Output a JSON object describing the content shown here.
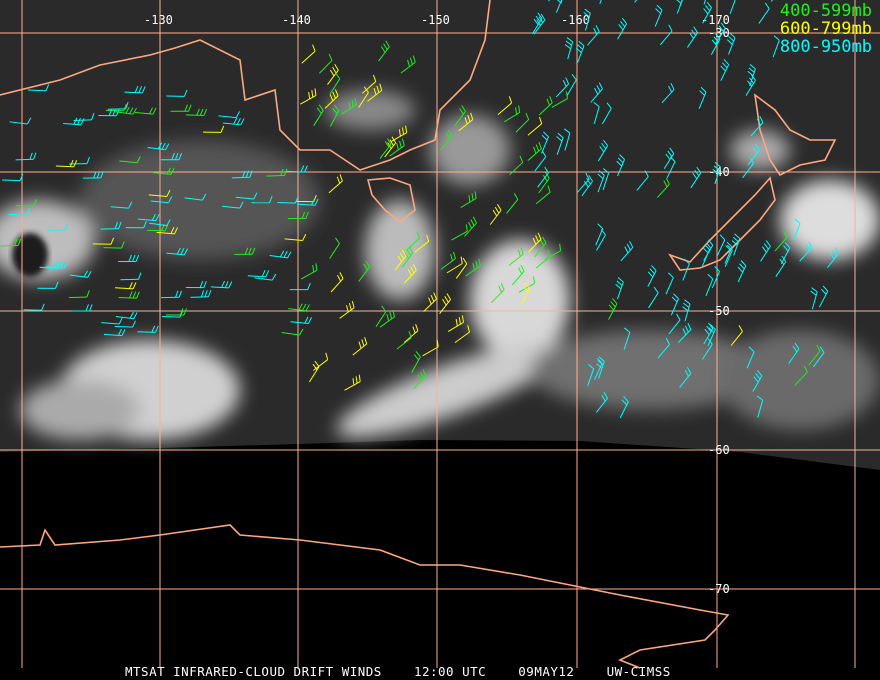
{
  "map": {
    "longitude_labels": [
      "-130",
      "-140",
      "-150",
      "-160",
      "-170"
    ],
    "latitude_labels": [
      "-30",
      "-40",
      "-50",
      "-60",
      "-70"
    ],
    "grid_color": "#ffb090",
    "coast_color": "#ffa880"
  },
  "legend": [
    {
      "label": "400-599mb",
      "color": "#22ee22"
    },
    {
      "label": "600-799mb",
      "color": "#ffff00"
    },
    {
      "label": "800-950mb",
      "color": "#00ffff"
    }
  ],
  "caption": {
    "product": "MTSAT INFRARED-CLOUD DRIFT WINDS",
    "time": "12:00 UTC",
    "date": "09MAY12",
    "source": "UW-CIMSS"
  }
}
